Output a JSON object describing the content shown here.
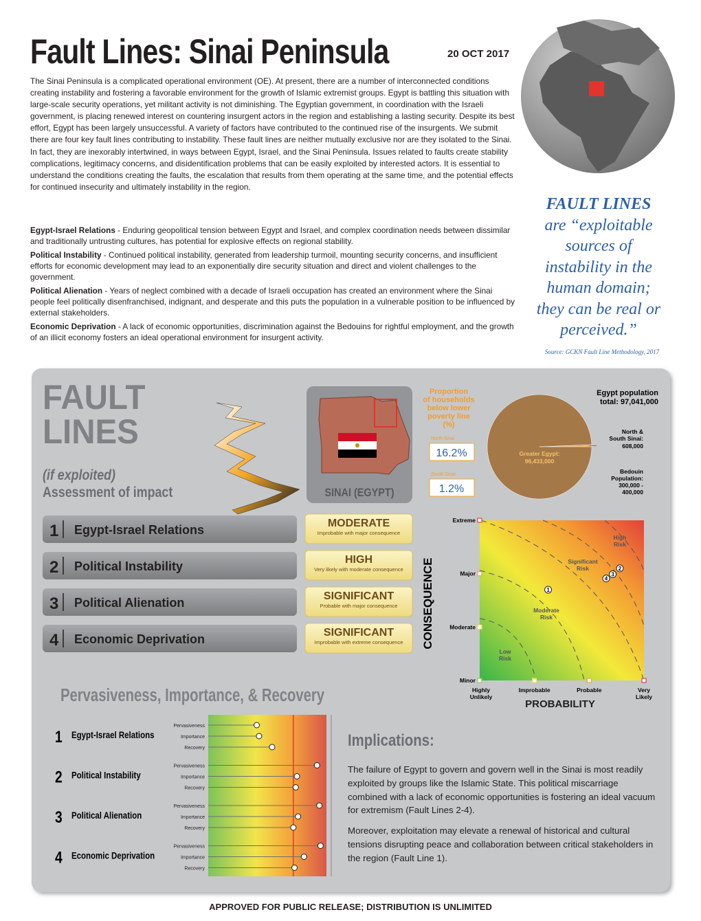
{
  "header": {
    "title": "Fault Lines: Sinai Peninsula",
    "date": "20 OCT 2017"
  },
  "intro": "The Sinai Peninsula is a complicated operational environment (OE). At present, there are a number of interconnected conditions creating instability and fostering a favorable environment for the growth of Islamic extremist groups. Egypt is battling this situation with large-scale security operations, yet militant activity is not diminishing. The Egyptian government, in coordination with the Israeli government, is placing renewed interest on countering insurgent actors in the region and establishing a lasting security. Despite its best effort, Egypt has been largely unsuccessful. A variety of factors have contributed to the continued rise of the insurgents. We submit there are four key fault lines contributing to instability. These fault lines are neither mutually exclusive nor are they isolated to the Sinai. In fact, they are inexorably intertwined, in ways between Egypt, Israel, and the Sinai Peninsula. Issues related to faults create stability complications, legitimacy concerns, and disidentification problems that can be easily exploited by interested actors. It is essential to understand the conditions creating the faults, the escalation that results from them operating at the same time, and the potential effects for continued insecurity and ultimately instability in the region.",
  "definitions": [
    {
      "term": "Egypt-Israel Relations",
      "text": " - Enduring geopolitical tension between Egypt and Israel, and complex coordination needs between dissimilar and traditionally untrusting cultures, has potential for explosive effects on regional stability."
    },
    {
      "term": "Political Instability",
      "text": " - Continued political instability, generated from leadership turmoil, mounting security concerns, and insufficient efforts for economic development may lead to an exponentially dire security situation and direct and violent challenges to the government."
    },
    {
      "term": "Political Alienation",
      "text": " - Years of neglect combined with a decade of Israeli occupation has created an environment where the Sinai people feel politically disenfranchised, indignant, and desperate and this puts the population in a vulnerable position to be influenced by external stakeholders."
    },
    {
      "term": "Economic Deprivation",
      "text": " - A lack of economic opportunities, discrimination against the Bedouins for rightful employment, and the growth of an illicit economy fosters an ideal operational environment for insurgent activity."
    }
  ],
  "quote": {
    "lines": [
      "FAULT LINES",
      "are “exploitable",
      "sources of",
      "instability in the",
      "human domain;",
      "they can be real or",
      "perceived.”"
    ],
    "source": "Source: GCKN Fault Line Methodology, 2017"
  },
  "panel": {
    "title_lines": [
      "FAULT",
      "LINES"
    ],
    "subtitle_lines": [
      "(if exploited)",
      "Assessment of impact"
    ],
    "map_label": "SINAI (EGYPT)",
    "poverty": {
      "title_lines": [
        "Proportion",
        "of households",
        "below lower",
        "poverty line",
        "(%)"
      ],
      "north": {
        "label": "North Sinai",
        "value": "16.2%"
      },
      "south": {
        "label": "South Sinai",
        "value": "1.2%"
      }
    },
    "pie": {
      "title_lines": [
        "Egypt population",
        "total: 97,041,000"
      ],
      "slices": [
        {
          "label_lines": [
            "North &",
            "South Sinai:"
          ],
          "value": 608000,
          "value_label": "608,000",
          "color": "#e8a33c"
        },
        {
          "label_lines": [
            "Greater Egypt:"
          ],
          "value": 96433000,
          "value_label": "96,433,000",
          "color": "#a57848"
        }
      ],
      "note_lines": [
        "Bedouin",
        "Population:",
        "300,000 -",
        "400,000"
      ]
    },
    "assessments": [
      {
        "number": "1",
        "name": "Egypt-Israel Relations",
        "level": "MODERATE",
        "description": "Improbable with major consequence"
      },
      {
        "number": "2",
        "name": "Political Instability",
        "level": "HIGH",
        "description": "Very likely with moderate consequence"
      },
      {
        "number": "3",
        "name": "Political Alienation",
        "level": "SIGNIFICANT",
        "description": "Probable with major consequence"
      },
      {
        "number": "4",
        "name": "Economic Deprivation",
        "level": "SIGNIFICANT",
        "description": "Improbable with extreme consequence"
      }
    ],
    "risk": {
      "y_title": "CONSEQUENCE",
      "x_title": "PROBABILITY",
      "xlim": [
        0,
        3
      ],
      "ylim": [
        0,
        3
      ],
      "y_levels": [
        "Minor",
        "Moderate",
        "Major",
        "Extreme"
      ],
      "x_levels": [
        [
          "Highly",
          "Unlikely"
        ],
        [
          "Improbable"
        ],
        [
          "Probable"
        ],
        [
          "Very",
          "Likely"
        ]
      ],
      "zones": [
        [
          "High",
          "Risk"
        ],
        [
          "Significant",
          "Risk"
        ],
        [
          "Moderate",
          "Risk"
        ],
        [
          "Low",
          "Risk"
        ]
      ],
      "points": [
        {
          "label": "1",
          "x": 1.25,
          "y": 1.7
        },
        {
          "label": "2",
          "x": 2.56,
          "y": 2.1
        },
        {
          "label": "3",
          "x": 2.43,
          "y": 1.99
        },
        {
          "label": "4",
          "x": 2.31,
          "y": 1.91
        }
      ]
    },
    "pir": {
      "title": "Pervasiveness, Importance, & Recovery",
      "measures": [
        "Pervasiveness",
        "Importance",
        "Recovery"
      ],
      "xlim": [
        0,
        100
      ],
      "threshold": 72,
      "groups": [
        {
          "number": "1",
          "name": "Egypt-Israel Relations",
          "values": [
            41,
            43,
            54
          ]
        },
        {
          "number": "2",
          "name": "Political Instability",
          "values": [
            92,
            75,
            74
          ]
        },
        {
          "number": "3",
          "name": "Political Alienation",
          "values": [
            94,
            76,
            72
          ]
        },
        {
          "number": "4",
          "name": "Economic Deprivation",
          "values": [
            95,
            81,
            73
          ]
        }
      ]
    },
    "implications": {
      "title": "Implications:",
      "paragraphs": [
        "The failure of Egypt to govern and govern well in the Sinai is most readily exploited by groups like the Islamic State. This political miscarriage combined with a lack of economic opportunities is fostering an ideal vacuum for extremism (Fault Lines 2-4).",
        "Moreover, exploitation may elevate a renewal of historical and cultural tensions disrupting peace and collaboration between critical stakeholders in the region (Fault Line 1)."
      ]
    }
  },
  "footer": "APPROVED FOR PUBLIC RELEASE; DISTRIBUTION IS UNLIMITED"
}
